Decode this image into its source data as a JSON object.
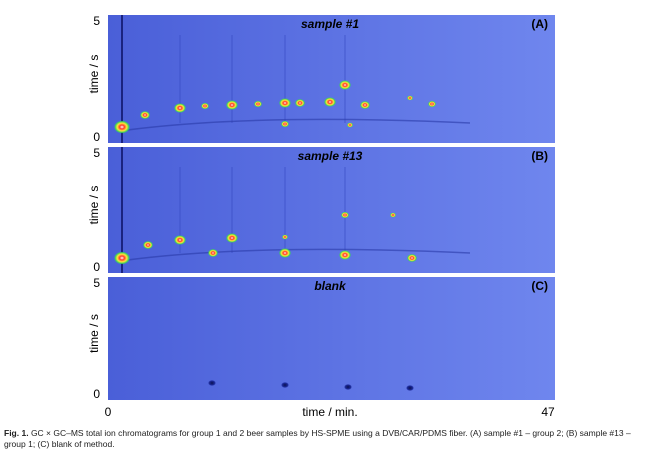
{
  "figure": {
    "panels": [
      {
        "title": "sample #1",
        "letter": "(A)",
        "y_axis_label": "time / s",
        "y_ticks": [
          "5",
          "0"
        ]
      },
      {
        "title": "sample #13",
        "letter": "(B)",
        "y_axis_label": "time / s",
        "y_ticks": [
          "5",
          "0"
        ]
      },
      {
        "title": "blank",
        "letter": "(C)",
        "y_axis_label": "time / s",
        "y_ticks": [
          "5",
          "0"
        ]
      }
    ],
    "x_axis": {
      "label": "time / min.",
      "ticks": [
        "0",
        "47"
      ]
    },
    "caption": {
      "label": "Fig. 1.",
      "text": "GC × GC–MS total ion chromatograms for group 1 and 2 beer samples by HS-SPME using a DVB/CAR/PDMS fiber. (A) sample #1 – group 2; (B) sample #13 – group 1; (C) blank of method."
    }
  }
}
